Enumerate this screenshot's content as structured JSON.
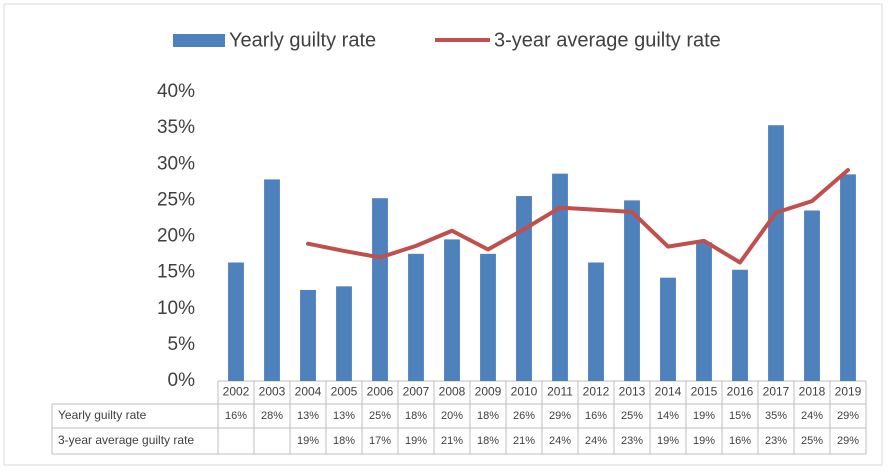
{
  "chart_data": {
    "type": "bar",
    "categories": [
      "2002",
      "2003",
      "2004",
      "2005",
      "2006",
      "2007",
      "2008",
      "2009",
      "2010",
      "2011",
      "2012",
      "2013",
      "2014",
      "2015",
      "2016",
      "2017",
      "2018",
      "2019"
    ],
    "series": [
      {
        "name": "Yearly guilty rate",
        "type": "bar",
        "color": "#4f81bd",
        "values": [
          16.4,
          27.9,
          12.6,
          13.1,
          25.3,
          17.6,
          19.6,
          17.6,
          25.6,
          28.7,
          16.4,
          25.0,
          14.3,
          19.2,
          15.4,
          35.4,
          23.6,
          28.6
        ],
        "value_labels": [
          "16%",
          "28%",
          "13%",
          "13%",
          "25%",
          "18%",
          "20%",
          "18%",
          "26%",
          "29%",
          "16%",
          "25%",
          "14%",
          "19%",
          "15%",
          "35%",
          "24%",
          "29%"
        ]
      },
      {
        "name": "3-year average guilty rate",
        "type": "line",
        "color": "#c0504d",
        "values": [
          null,
          null,
          19.0,
          18.0,
          17.1,
          18.7,
          20.8,
          18.2,
          21.0,
          24.0,
          23.7,
          23.4,
          18.6,
          19.4,
          16.4,
          23.3,
          24.9,
          29.2
        ],
        "value_labels": [
          null,
          null,
          "19%",
          "18%",
          "17%",
          "19%",
          "21%",
          "18%",
          "21%",
          "24%",
          "24%",
          "23%",
          "19%",
          "19%",
          "16%",
          "23%",
          "25%",
          "29%"
        ]
      }
    ],
    "ylim": [
      0,
      40
    ],
    "yticks": [
      {
        "value": 0,
        "label": "0%"
      },
      {
        "value": 5,
        "label": "5%"
      },
      {
        "value": 10,
        "label": "10%"
      },
      {
        "value": 15,
        "label": "15%"
      },
      {
        "value": 20,
        "label": "20%"
      },
      {
        "value": 25,
        "label": "25%"
      },
      {
        "value": 30,
        "label": "30%"
      },
      {
        "value": 35,
        "label": "35%"
      },
      {
        "value": 40,
        "label": "40%"
      }
    ],
    "grid": false,
    "legend": "top"
  }
}
